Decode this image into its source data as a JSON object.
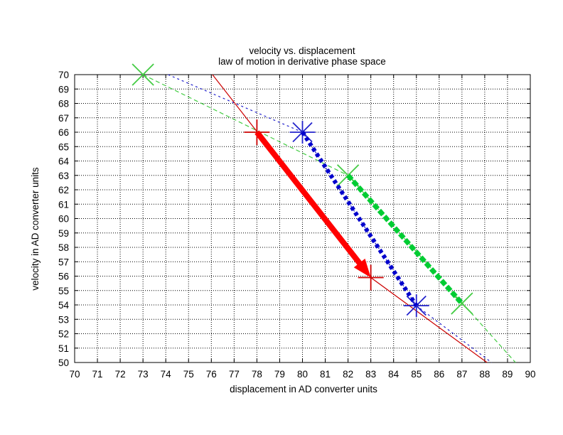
{
  "chart_data": {
    "type": "line",
    "title": "velocity vs. displacement",
    "subtitle": "law of motion in derivative phase space",
    "xlabel": "displacement in AD converter units",
    "ylabel": "velocity in AD converter units",
    "xlim": [
      70,
      90
    ],
    "ylim": [
      50,
      70
    ],
    "x_tick_step": 1,
    "y_tick_step": 1,
    "grid": true,
    "legend": "none",
    "background_color": "#ffffff",
    "axis_color": "#000000",
    "series": [
      {
        "name": "green-trajectory",
        "marker": "x",
        "color": "#00cc33",
        "thin_color": "#44cc44",
        "marker_points": [
          [
            73,
            70
          ],
          [
            82,
            63
          ],
          [
            87,
            54.1
          ]
        ],
        "thin_line": [
          [
            73,
            70
          ],
          [
            82,
            63
          ],
          [
            89.35,
            50
          ]
        ],
        "thin_dash": "6 4",
        "thick_segment": [
          [
            82,
            63
          ],
          [
            87,
            54.1
          ]
        ],
        "thick_width": 7,
        "thick_dash": "8 3"
      },
      {
        "name": "blue-trajectory",
        "marker": "asterisk",
        "color": "#0000cc",
        "thin_color": "#2222cc",
        "marker_points": [
          [
            80,
            66
          ],
          [
            85,
            53.95
          ]
        ],
        "thin_line": [
          [
            74.1,
            70
          ],
          [
            80,
            66
          ],
          [
            85,
            53.95
          ],
          [
            88.3,
            50
          ]
        ],
        "thin_dash": "3 4",
        "thick_segment": [
          [
            80,
            66
          ],
          [
            85,
            53.95
          ]
        ],
        "thick_width": 6,
        "thick_dash": "5 4"
      },
      {
        "name": "red-trajectory",
        "marker": "plus",
        "color": "#ff0000",
        "thin_color": "#cc0000",
        "marker_points": [
          [
            78,
            66
          ],
          [
            83,
            55.9
          ]
        ],
        "thin_line": [
          [
            76.05,
            70
          ],
          [
            83,
            55.9
          ],
          [
            88.1,
            50
          ]
        ],
        "thin_dash": "",
        "arrow_segment": [
          [
            78,
            66
          ],
          [
            83,
            55.9
          ]
        ],
        "thick_width": 8
      }
    ]
  }
}
